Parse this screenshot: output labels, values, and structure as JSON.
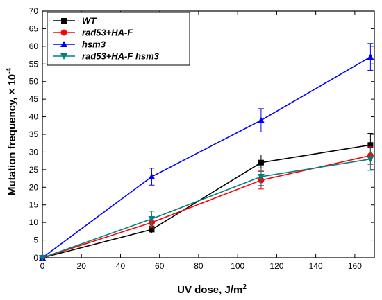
{
  "chart_data": {
    "type": "line",
    "xlabel": "UV dose, J/m",
    "xlabel_superscript": "2",
    "ylabel": "Mutation frequency, × 10",
    "ylabel_superscript": "-4",
    "xlim": [
      0,
      170
    ],
    "ylim": [
      0,
      70
    ],
    "x_ticks": [
      "0",
      "20",
      "40",
      "60",
      "80",
      "100",
      "120",
      "140",
      "160"
    ],
    "y_ticks": [
      "0",
      "5",
      "10",
      "15",
      "20",
      "25",
      "30",
      "35",
      "40",
      "45",
      "50",
      "55",
      "60",
      "65",
      "70"
    ],
    "grid": false,
    "legend_position": "top-left",
    "x": [
      0,
      56,
      112,
      168
    ],
    "series": [
      {
        "name": "WT",
        "color": "#000000",
        "marker": "square",
        "values": [
          0,
          8,
          27,
          32
        ],
        "errors": [
          0,
          1,
          2.2,
          3.3
        ]
      },
      {
        "name": "rad53+HA-F",
        "color": "#ff0000",
        "marker": "circle",
        "values": [
          0,
          10,
          22,
          29
        ],
        "errors": [
          0,
          1.5,
          2.5,
          2.5
        ]
      },
      {
        "name": "hsm3",
        "color": "#0000ff",
        "marker": "triangle-up",
        "values": [
          0,
          23,
          39,
          57
        ],
        "errors": [
          0,
          2.4,
          3.3,
          3.8
        ]
      },
      {
        "name": "rad53+HA-F hsm3",
        "color": "#008080",
        "marker": "triangle-down",
        "values": [
          0,
          11,
          23,
          28
        ],
        "errors": [
          0,
          2.2,
          2.5,
          3.2
        ]
      }
    ]
  }
}
